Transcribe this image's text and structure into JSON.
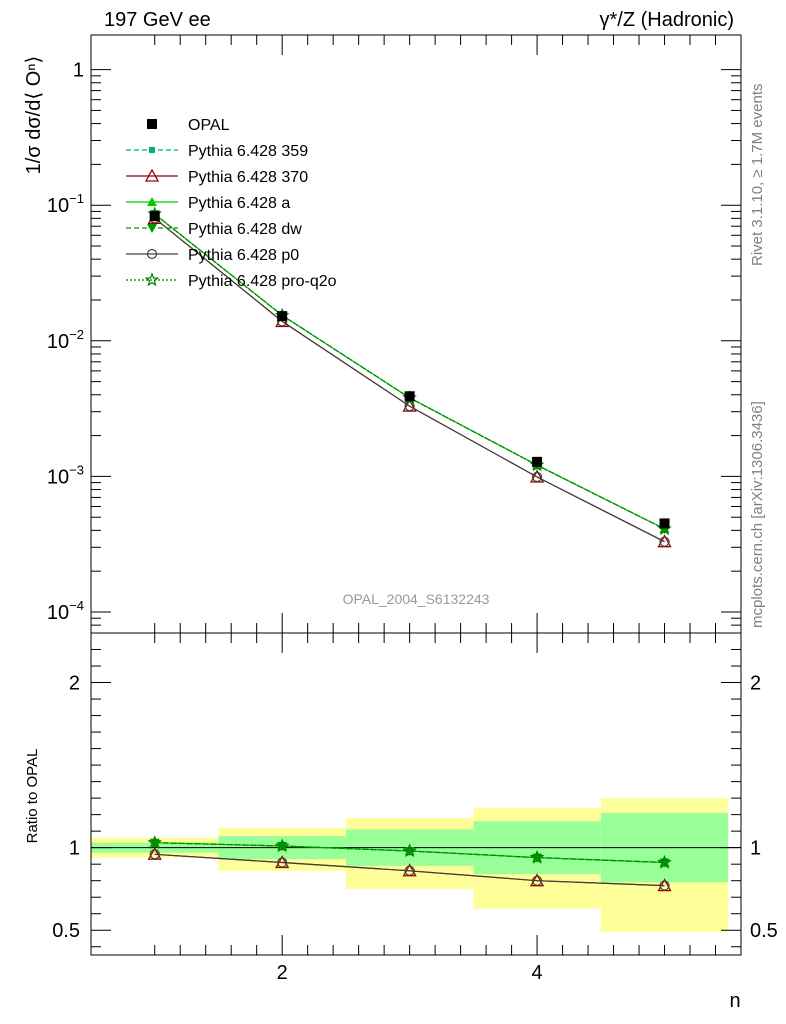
{
  "header": {
    "left_title": "197 GeV ee",
    "right_title": "γ*/Z (Hadronic)"
  },
  "side_labels": {
    "rivet": "Rivet 3.1.10, ≥ 1.7M events",
    "mcplots": "mcplots.cern.ch [arXiv:1306.3436]"
  },
  "analysis_label": "OPAL_2004_S6132243",
  "colors": {
    "band_inner": "#99ff99",
    "band_outer": "#ffff99",
    "p359": "#00b070",
    "p370": "#990000",
    "pa": "#00cc00",
    "pdw": "#009900",
    "pp0": "#404040",
    "pq2o": "#007f00"
  },
  "chart_data": [
    {
      "id": "main",
      "type": "line",
      "ylabel": "1/σ dσ/d⟨ Oⁿ⟩",
      "yscale": "log",
      "ylim": [
        7e-05,
        1.8
      ],
      "xlim": [
        0.5,
        5.6
      ],
      "yticks": [
        {
          "value": 1,
          "label": "1"
        },
        {
          "value": 0.1,
          "label": "10",
          "exp": "−1"
        },
        {
          "value": 0.01,
          "label": "10",
          "exp": "−2"
        },
        {
          "value": 0.001,
          "label": "10",
          "exp": "−3"
        },
        {
          "value": 0.0001,
          "label": "10",
          "exp": "−4"
        }
      ],
      "legend_position": "top-left",
      "x": [
        1,
        2,
        3,
        4,
        5
      ],
      "series": [
        {
          "name": "OPAL",
          "key": "opal",
          "values": [
            0.083,
            0.0152,
            0.0039,
            0.00128,
            0.00045
          ]
        },
        {
          "name": "Pythia 6.428 359",
          "key": "p359",
          "values": [
            0.086,
            0.0154,
            0.0038,
            0.00121,
            0.00041
          ]
        },
        {
          "name": "Pythia 6.428 370",
          "key": "p370",
          "values": [
            0.08,
            0.0139,
            0.0033,
            0.00099,
            0.00033
          ]
        },
        {
          "name": "Pythia 6.428 a",
          "key": "pa",
          "values": [
            0.086,
            0.0154,
            0.0038,
            0.00121,
            0.00041
          ]
        },
        {
          "name": "Pythia 6.428 dw",
          "key": "pdw",
          "values": [
            0.086,
            0.0154,
            0.0038,
            0.00121,
            0.00041
          ]
        },
        {
          "name": "Pythia 6.428 p0",
          "key": "pp0",
          "values": [
            0.08,
            0.0139,
            0.0033,
            0.00099,
            0.00033
          ]
        },
        {
          "name": "Pythia 6.428 pro-q2o",
          "key": "pq2o",
          "values": [
            0.086,
            0.0154,
            0.0038,
            0.00121,
            0.00041
          ]
        }
      ]
    },
    {
      "id": "ratio",
      "type": "line",
      "ylabel": "Ratio to OPAL",
      "xlabel": "n",
      "ylim": [
        0.35,
        2.3
      ],
      "xlim": [
        0.5,
        5.6
      ],
      "yticks": [
        {
          "value": 0.5,
          "label": "0.5"
        },
        {
          "value": 1,
          "label": "1"
        },
        {
          "value": 2,
          "label": "2"
        }
      ],
      "xticks": [
        {
          "value": 2,
          "label": "2"
        },
        {
          "value": 4,
          "label": "4"
        }
      ],
      "bands": [
        {
          "x0": 0.5,
          "x1": 1.5,
          "inner": [
            0.97,
            1.03
          ],
          "outer": [
            0.94,
            1.06
          ]
        },
        {
          "x0": 1.5,
          "x1": 2.5,
          "inner": [
            0.93,
            1.07
          ],
          "outer": [
            0.86,
            1.12
          ]
        },
        {
          "x0": 2.5,
          "x1": 3.5,
          "inner": [
            0.89,
            1.11
          ],
          "outer": [
            0.75,
            1.18
          ]
        },
        {
          "x0": 3.5,
          "x1": 4.5,
          "inner": [
            0.84,
            1.16
          ],
          "outer": [
            0.63,
            1.24
          ]
        },
        {
          "x0": 4.5,
          "x1": 5.5,
          "inner": [
            0.79,
            1.21
          ],
          "outer": [
            0.49,
            1.3
          ]
        }
      ],
      "x": [
        1,
        2,
        3,
        4,
        5
      ],
      "series": [
        {
          "name": "Pythia 6.428 359",
          "key": "p359",
          "values": [
            1.03,
            1.01,
            0.98,
            0.94,
            0.91
          ]
        },
        {
          "name": "Pythia 6.428 370",
          "key": "p370",
          "values": [
            0.96,
            0.91,
            0.86,
            0.8,
            0.77
          ]
        },
        {
          "name": "Pythia 6.428 a",
          "key": "pa",
          "values": [
            1.03,
            1.01,
            0.98,
            0.94,
            0.91
          ]
        },
        {
          "name": "Pythia 6.428 dw",
          "key": "pdw",
          "values": [
            1.03,
            1.01,
            0.98,
            0.94,
            0.91
          ]
        },
        {
          "name": "Pythia 6.428 p0",
          "key": "pp0",
          "values": [
            0.96,
            0.91,
            0.86,
            0.8,
            0.77
          ]
        },
        {
          "name": "Pythia 6.428 pro-q2o",
          "key": "pq2o",
          "values": [
            1.03,
            1.01,
            0.98,
            0.94,
            0.91
          ]
        }
      ]
    }
  ]
}
